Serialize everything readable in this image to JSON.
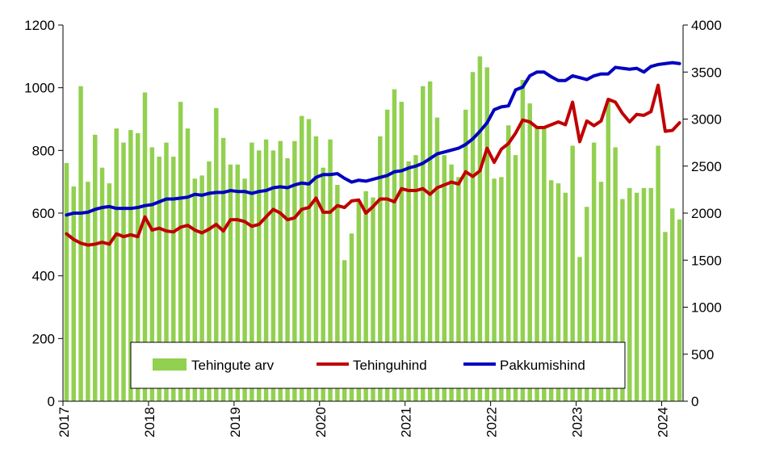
{
  "chart_data": {
    "type": "bar",
    "title": "",
    "x_tick_labels": [
      "2017",
      "2018",
      "2019",
      "2020",
      "2021",
      "2022",
      "2023",
      "2024"
    ],
    "y_left": {
      "label": "",
      "range": [
        0,
        1200
      ],
      "ticks": [
        "0",
        "200",
        "400",
        "600",
        "800",
        "1000",
        "1200"
      ]
    },
    "y_right": {
      "label": "",
      "range": [
        0,
        4000
      ],
      "ticks": [
        "0",
        "500",
        "1000",
        "1500",
        "2000",
        "2500",
        "3000",
        "3500",
        "4000"
      ]
    },
    "grid": false,
    "legend_placement": "bottom-center",
    "legend": [
      {
        "name": "Tehingute arv",
        "color": "#92D050"
      },
      {
        "name": "Tehinguhind",
        "color": "#C00000"
      },
      {
        "name": "Pakkumishind",
        "color": "#0000C0"
      }
    ],
    "series": [
      {
        "name": "Tehingute arv",
        "type": "bar",
        "axis": "left",
        "color": "#92D050",
        "values": [
          760,
          685,
          1005,
          700,
          850,
          745,
          695,
          870,
          825,
          865,
          855,
          985,
          810,
          780,
          825,
          780,
          955,
          870,
          710,
          720,
          765,
          935,
          840,
          755,
          755,
          710,
          825,
          800,
          835,
          800,
          830,
          775,
          830,
          910,
          900,
          845,
          745,
          835,
          690,
          450,
          535,
          640,
          670,
          650,
          845,
          930,
          995,
          955,
          765,
          785,
          1005,
          1020,
          905,
          785,
          755,
          715,
          930,
          1050,
          1100,
          1065,
          710,
          715,
          880,
          785,
          1025,
          950,
          875,
          875,
          705,
          695,
          665,
          815,
          460,
          620,
          825,
          700,
          960,
          810,
          645,
          680,
          665,
          680,
          680,
          815,
          540,
          615,
          580
        ]
      },
      {
        "name": "Tehinguhind",
        "type": "line",
        "axis": "right",
        "color": "#C00000",
        "values": [
          1780,
          1720,
          1680,
          1660,
          1670,
          1690,
          1670,
          1780,
          1750,
          1770,
          1750,
          1960,
          1820,
          1840,
          1810,
          1800,
          1850,
          1870,
          1820,
          1790,
          1830,
          1880,
          1810,
          1930,
          1930,
          1910,
          1860,
          1880,
          1960,
          2040,
          2000,
          1930,
          1950,
          2040,
          2060,
          2160,
          2010,
          2010,
          2080,
          2060,
          2130,
          2140,
          2000,
          2070,
          2150,
          2150,
          2120,
          2260,
          2240,
          2240,
          2260,
          2200,
          2270,
          2300,
          2330,
          2310,
          2440,
          2390,
          2450,
          2690,
          2540,
          2680,
          2740,
          2850,
          2990,
          2970,
          2910,
          2910,
          2940,
          2970,
          2940,
          3180,
          2760,
          2980,
          2930,
          2980,
          3210,
          3180,
          3060,
          2970,
          3050,
          3040,
          3080,
          3360,
          2870,
          2880,
          2960
        ]
      },
      {
        "name": "Pakkumishind",
        "type": "line",
        "axis": "right",
        "color": "#0000C0",
        "values": [
          1980,
          2000,
          2000,
          2010,
          2040,
          2060,
          2070,
          2050,
          2050,
          2050,
          2060,
          2080,
          2090,
          2120,
          2150,
          2150,
          2160,
          2170,
          2200,
          2190,
          2210,
          2220,
          2220,
          2240,
          2230,
          2230,
          2210,
          2230,
          2240,
          2270,
          2280,
          2270,
          2300,
          2320,
          2310,
          2380,
          2410,
          2410,
          2420,
          2370,
          2330,
          2350,
          2340,
          2360,
          2380,
          2400,
          2440,
          2450,
          2480,
          2500,
          2530,
          2580,
          2630,
          2650,
          2670,
          2690,
          2730,
          2790,
          2870,
          2960,
          3100,
          3130,
          3140,
          3310,
          3340,
          3460,
          3500,
          3500,
          3450,
          3410,
          3410,
          3460,
          3440,
          3420,
          3460,
          3480,
          3480,
          3550,
          3540,
          3530,
          3540,
          3500,
          3560,
          3580,
          3590,
          3600,
          3590
        ]
      }
    ]
  }
}
